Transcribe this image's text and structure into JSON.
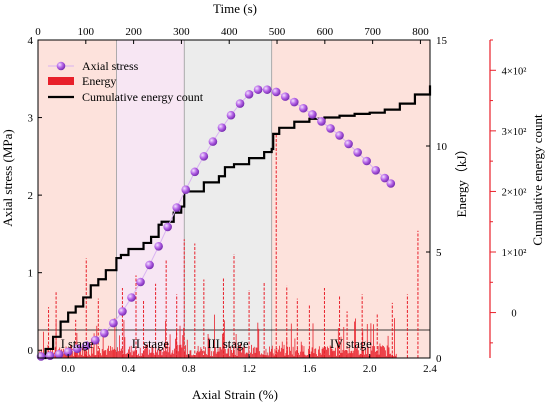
{
  "chart_data": {
    "type": "line",
    "x_axis": {
      "label": "Axial Strain (%)",
      "range": [
        -0.2,
        2.4
      ],
      "ticks": [
        0.0,
        0.4,
        0.8,
        1.2,
        1.6,
        2.0,
        2.4
      ],
      "tick_labels": [
        "0.0",
        "0.4",
        "0.8",
        "1.2",
        "1.6",
        "2.0",
        "2.4"
      ]
    },
    "x2_axis": {
      "label": "Time (s)",
      "range": [
        0,
        820
      ],
      "ticks": [
        0,
        100,
        200,
        300,
        400,
        500,
        600,
        700,
        800
      ],
      "tick_labels": [
        "0",
        "100",
        "200",
        "300",
        "400",
        "500",
        "600",
        "700",
        "800"
      ]
    },
    "y_axis": {
      "label": "Axial stress (MPa)",
      "range": [
        -0.1,
        4
      ],
      "ticks": [
        0,
        1,
        2,
        3,
        4
      ],
      "tick_labels": [
        "0",
        "1",
        "2",
        "3",
        "4"
      ]
    },
    "y2_axis": {
      "label": "Energy（kJ）",
      "range": [
        0,
        15
      ],
      "ticks": [
        0,
        5,
        10,
        15
      ],
      "tick_labels": [
        "0",
        "5",
        "10",
        "15"
      ]
    },
    "y3_axis": {
      "label": "Cumulative energy count",
      "range": [
        -75,
        450
      ],
      "ticks": [
        0,
        100,
        200,
        300,
        400
      ],
      "tick_labels": [
        "0",
        "1×10²",
        "2×10²",
        "3×10²",
        "4×10²"
      ],
      "color": "#e8202a"
    },
    "stages": [
      {
        "label": "I stage",
        "x_start": -0.2,
        "x_end": 0.32,
        "color": "#fde2dc"
      },
      {
        "label": "II stage",
        "x_start": 0.32,
        "x_end": 0.77,
        "color": "#f7e6f3"
      },
      {
        "label": "III stage",
        "x_start": 0.77,
        "x_end": 1.35,
        "color": "#ececec"
      },
      {
        "label": "IV stage",
        "x_start": 1.35,
        "x_end": 2.4,
        "color": "#fde2dc"
      }
    ],
    "legend": {
      "placement": "top-left",
      "entries": [
        "Axial stress",
        "Energy",
        "Cumulative energy count"
      ]
    },
    "series": [
      {
        "name": "Axial stress",
        "axis": "y",
        "color": "#b361e6",
        "x": [
          -0.18,
          -0.12,
          -0.06,
          0.0,
          0.06,
          0.12,
          0.18,
          0.24,
          0.3,
          0.36,
          0.42,
          0.48,
          0.54,
          0.6,
          0.66,
          0.72,
          0.78,
          0.84,
          0.9,
          0.96,
          1.02,
          1.08,
          1.14,
          1.2,
          1.26,
          1.32,
          1.38,
          1.44,
          1.5,
          1.56,
          1.62,
          1.68,
          1.74,
          1.8,
          1.86,
          1.92,
          1.98,
          2.04,
          2.1,
          2.14
        ],
        "y": [
          -0.08,
          -0.07,
          -0.05,
          -0.02,
          0.02,
          0.06,
          0.13,
          0.22,
          0.35,
          0.5,
          0.68,
          0.88,
          1.1,
          1.34,
          1.59,
          1.84,
          2.07,
          2.3,
          2.5,
          2.69,
          2.87,
          3.03,
          3.18,
          3.3,
          3.36,
          3.36,
          3.33,
          3.27,
          3.2,
          3.12,
          3.04,
          2.95,
          2.86,
          2.77,
          2.66,
          2.55,
          2.44,
          2.32,
          2.22,
          2.15
        ]
      },
      {
        "name": "Cumulative energy count",
        "axis": "y3",
        "color": "#000000",
        "x": [
          -0.2,
          -0.15,
          -0.1,
          -0.05,
          0.0,
          0.05,
          0.1,
          0.15,
          0.2,
          0.25,
          0.32,
          0.35,
          0.4,
          0.5,
          0.55,
          0.6,
          0.62,
          0.7,
          0.75,
          0.77,
          0.8,
          0.9,
          1.0,
          1.04,
          1.1,
          1.2,
          1.3,
          1.35,
          1.36,
          1.4,
          1.5,
          1.6,
          1.7,
          1.8,
          1.9,
          2.0,
          2.1,
          2.2,
          2.3,
          2.4
        ],
        "y": [
          -75,
          -60,
          -40,
          -15,
          0,
          10,
          25,
          45,
          55,
          70,
          90,
          95,
          105,
          115,
          125,
          145,
          150,
          165,
          175,
          200,
          200,
          215,
          225,
          240,
          245,
          255,
          265,
          270,
          295,
          305,
          315,
          320,
          322,
          325,
          328,
          330,
          335,
          345,
          360,
          375
        ]
      }
    ],
    "energy_bars": {
      "name": "Energy",
      "axis": "y2",
      "color": "#e8202a",
      "x": [
        -0.13,
        -0.08,
        0.05,
        0.12,
        0.2,
        0.36,
        0.45,
        0.5,
        0.58,
        0.65,
        0.72,
        0.77,
        0.84,
        0.9,
        1.03,
        1.1,
        1.2,
        1.3,
        1.38,
        1.45,
        1.52,
        1.6,
        1.7,
        1.8,
        1.85,
        1.95,
        2.05,
        2.15,
        2.25,
        2.32
      ],
      "y": [
        2.4,
        3.1,
        1.8,
        4.7,
        2.8,
        3.3,
        3.9,
        2.7,
        3.5,
        4.6,
        3.0,
        5.6,
        5.4,
        3.7,
        3.8,
        4.9,
        3.2,
        3.6,
        10.6,
        3.4,
        2.8,
        2.5,
        3.3,
        2.9,
        2.2,
        3.0,
        2.1,
        2.6,
        3.0,
        6.0
      ]
    }
  }
}
